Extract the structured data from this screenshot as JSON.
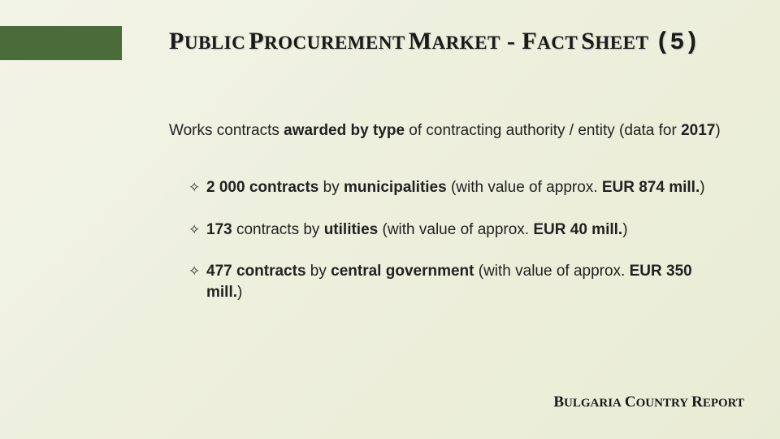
{
  "accent_color": "#4a6b3a",
  "title": {
    "w1_cap": "P",
    "w1_rest": "UBLIC",
    "w2_cap": "P",
    "w2_rest": "ROCUREMENT",
    "w3_cap": "M",
    "w3_rest": "ARKET",
    "dash": " - ",
    "w4_cap": "F",
    "w4_rest": "ACT",
    "w5_cap": "S",
    "w5_rest": "HEET",
    "page_num": "(5)"
  },
  "subtitle": {
    "pre": "Works contracts ",
    "bold1": "awarded by type",
    "mid": " of contracting authority / entity (data for ",
    "bold2": "2017",
    "post": ")"
  },
  "bullets": [
    {
      "b1": "2 000 contracts",
      "t1": " by ",
      "b2": "municipalities",
      "t2": " (with value of approx. ",
      "b3": "EUR 874 mill.",
      "t3": ")"
    },
    {
      "b1": "173",
      "t1": " contracts by ",
      "b2": "utilities",
      "t2": " (with value of approx. ",
      "b3": "EUR 40 mill.",
      "t3": ")"
    },
    {
      "pre": " ",
      "b1": "477 contracts",
      "t1": " by ",
      "b2": "central government",
      "t2": " (with value of approx. ",
      "b3": "EUR 350 mill.",
      "t3": ")"
    }
  ],
  "footer": {
    "w1_cap": "B",
    "w1_rest": "ULGARIA",
    "w2_cap": "C",
    "w2_rest": "OUNTRY",
    "w3_cap": "R",
    "w3_rest": "EPORT"
  },
  "marker": "✧"
}
